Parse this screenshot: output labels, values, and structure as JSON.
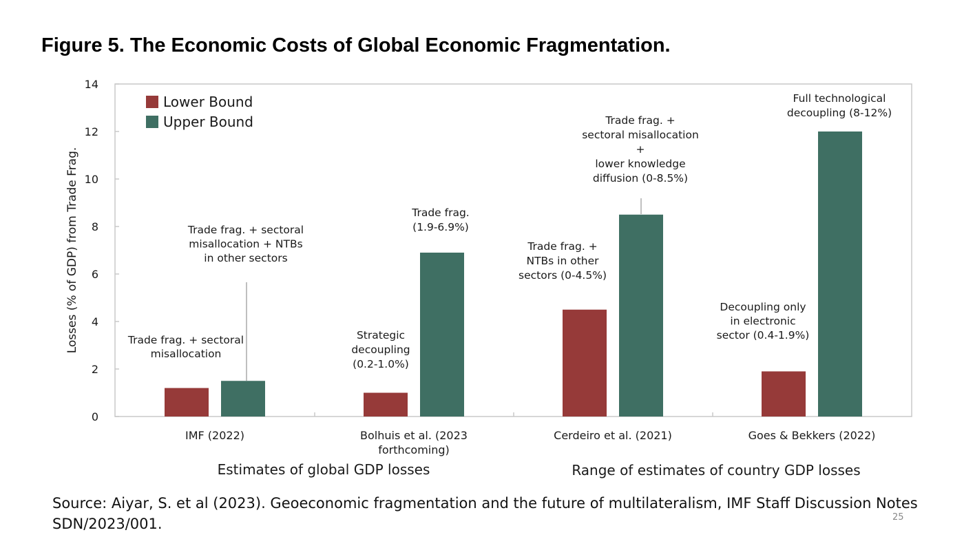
{
  "title": "Figure 5. The Economic Costs of Global Economic Fragmentation.",
  "source_text": "Source: Aiyar, S. et al (2023).  Geoeconomic fragmentation and the future of multilateralism, IMF Staff Discussion Notes SDN/2023/001.",
  "page_number": "25",
  "colors": {
    "lower": "#963a39",
    "upper": "#3f6f63"
  },
  "chart_data": {
    "type": "bar",
    "ylabel": "Losses (% of GDP) from  Trade Frag.",
    "ylim": [
      0,
      14
    ],
    "yticks": [
      "0",
      "2",
      "4",
      "6",
      "8",
      "10",
      "12",
      "14"
    ],
    "grid": false,
    "legend_position": "top-left",
    "categories": [
      [
        "IMF (2022)"
      ],
      [
        "Bolhuis et al. (2023",
        "forthcoming)"
      ],
      [
        "Cerdeiro et al. (2021)"
      ],
      [
        "Goes & Bekkers (2022)"
      ]
    ],
    "series": [
      {
        "name": "Lower Bound",
        "values": [
          1.2,
          1.0,
          4.5,
          1.9
        ]
      },
      {
        "name": "Upper Bound",
        "values": [
          1.5,
          6.9,
          8.5,
          12.0
        ]
      }
    ],
    "group_labels": [
      "Estimates of global GDP losses",
      "Range of estimates of country GDP losses"
    ],
    "annotations": [
      {
        "lines": [
          "Trade frag. + sectoral",
          "misallocation"
        ]
      },
      {
        "lines": [
          "Trade frag. + sectoral",
          "misallocation + NTBs",
          "in other sectors"
        ]
      },
      {
        "lines": [
          "Strategic",
          "decoupling",
          "(0.2-1.0%)"
        ]
      },
      {
        "lines": [
          "Trade frag.",
          "(1.9-6.9%)"
        ]
      },
      {
        "lines": [
          "Trade frag. +",
          "NTBs in other",
          "sectors (0-4.5%)"
        ]
      },
      {
        "lines": [
          "Trade frag. +",
          "sectoral misallocation",
          "+",
          "lower knowledge",
          "diffusion (0-8.5%)"
        ]
      },
      {
        "lines": [
          "Decoupling only",
          "in electronic",
          "sector (0.4-1.9%)"
        ]
      },
      {
        "lines": [
          "Full technological",
          "decoupling (8-12%)"
        ]
      }
    ]
  }
}
